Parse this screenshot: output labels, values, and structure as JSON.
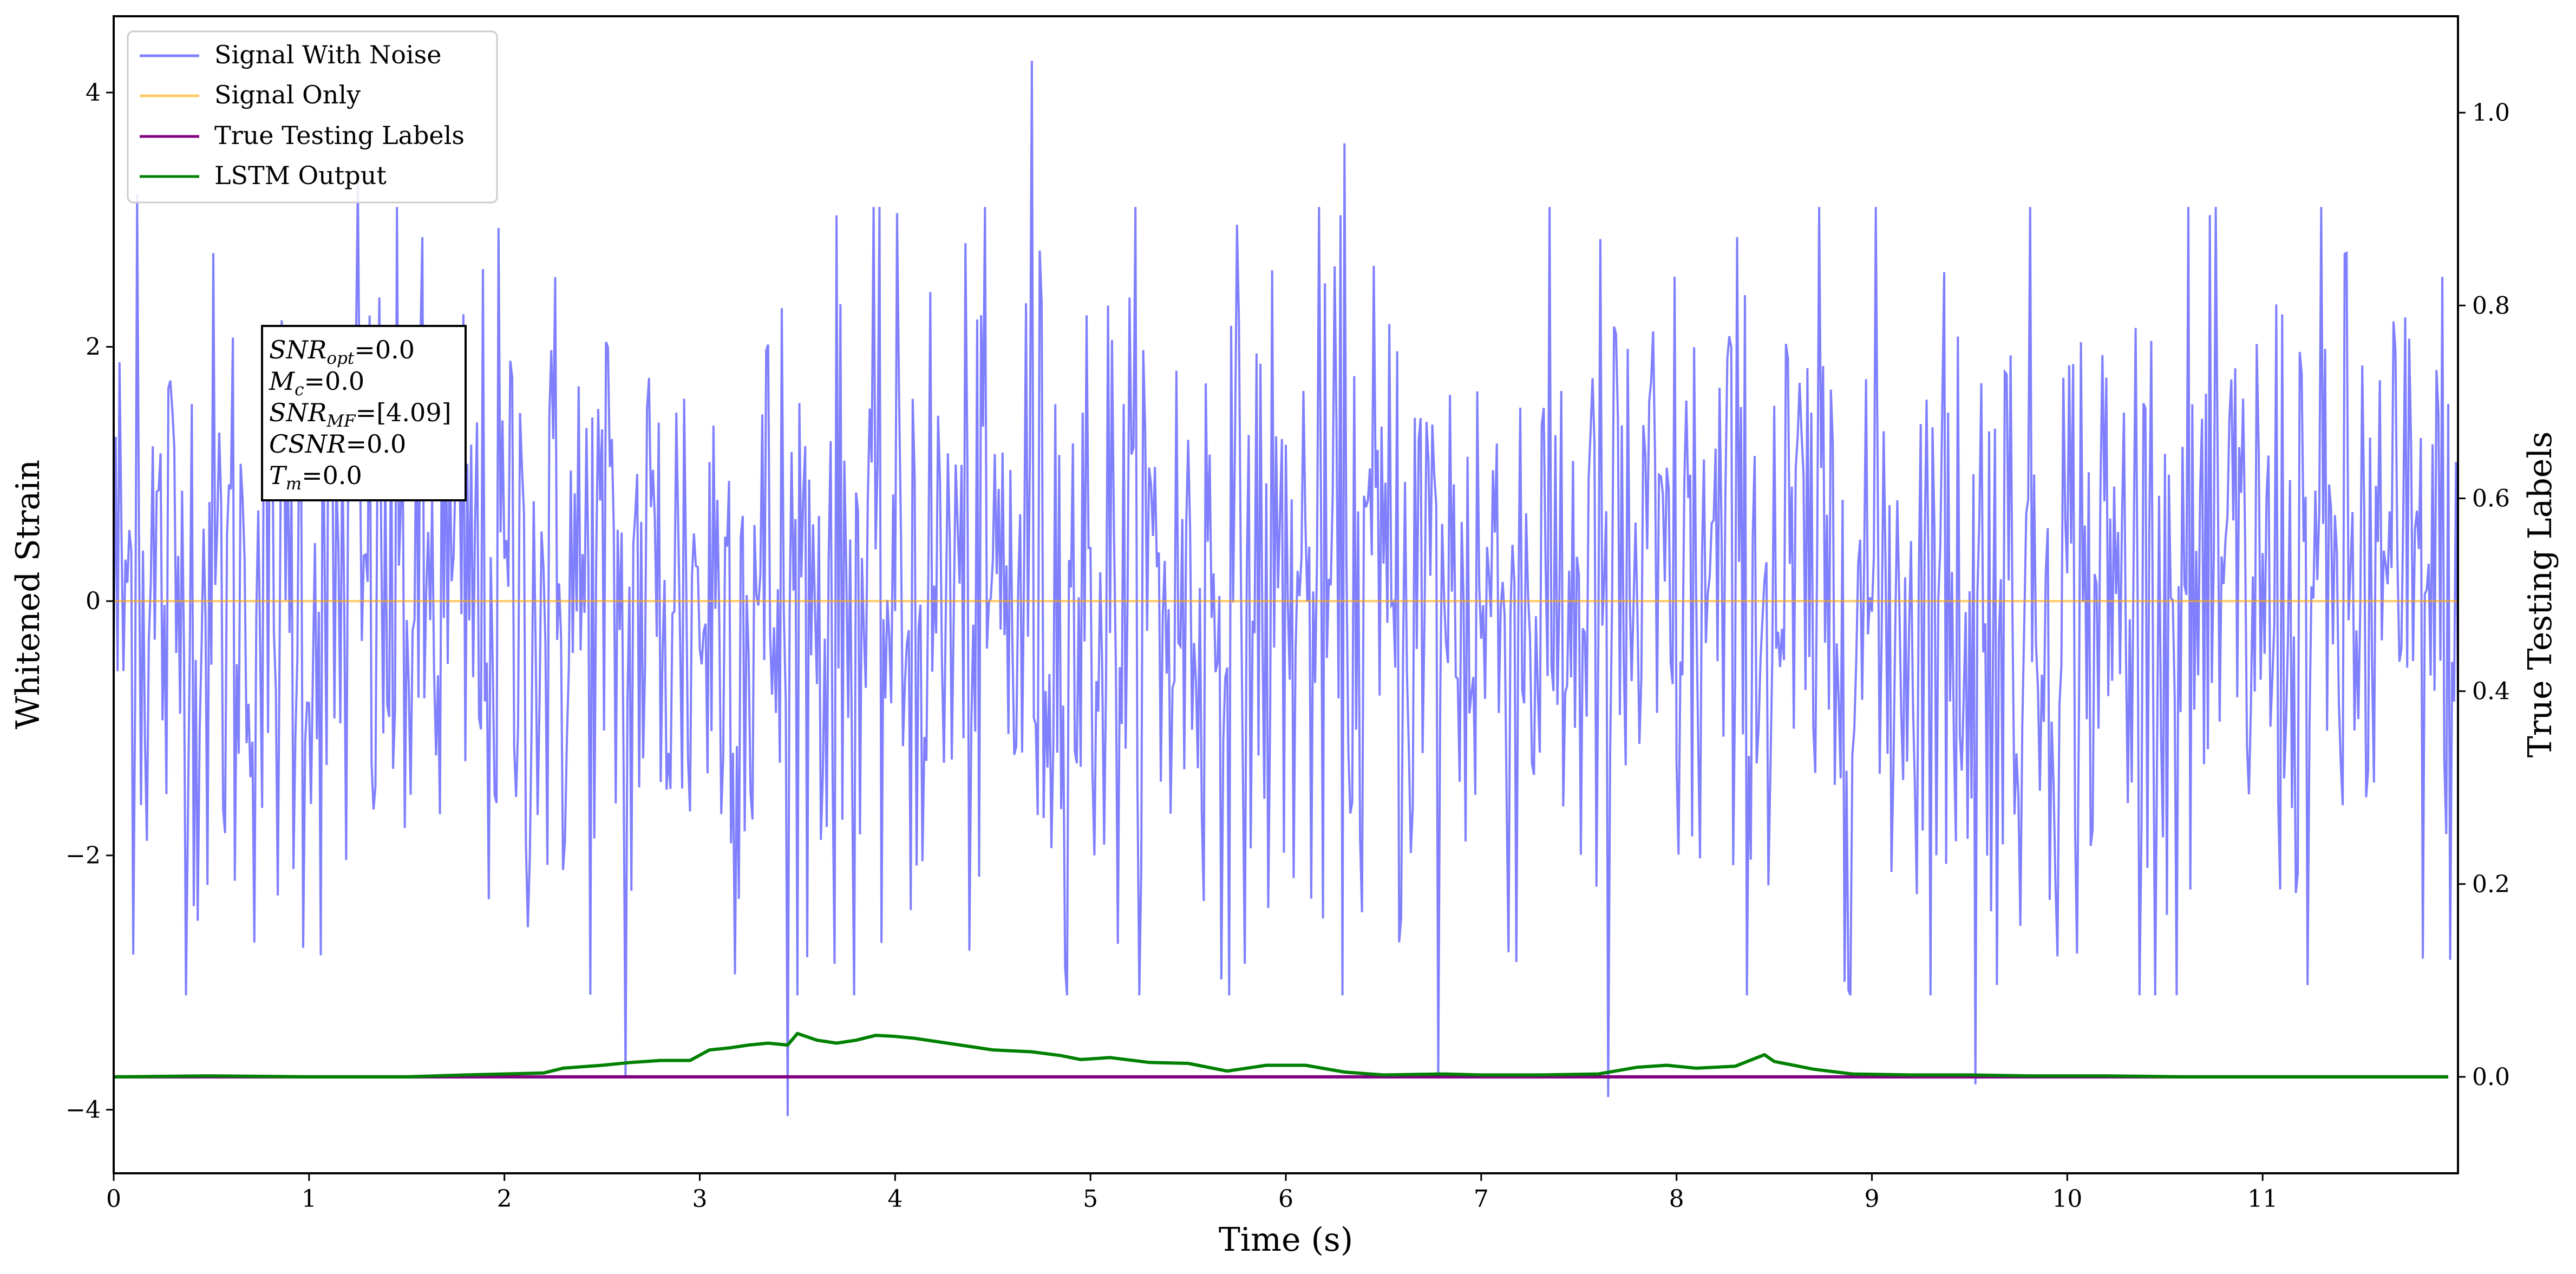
{
  "chart_data": {
    "type": "line",
    "xlabel": "Time (s)",
    "ylabel_left": "Whitened Strain",
    "ylabel_right": "True Testing Labels",
    "xlim": [
      0,
      12
    ],
    "ylim_left": [
      -4.5,
      4.6
    ],
    "ylim_right": [
      -0.1,
      1.1
    ],
    "x_ticks": [
      "0",
      "1",
      "2",
      "3",
      "4",
      "5",
      "6",
      "7",
      "8",
      "9",
      "10",
      "11"
    ],
    "y_left_ticks": [
      "−4",
      "−2",
      "0",
      "2",
      "4"
    ],
    "y_right_ticks": [
      "0.0",
      "0.2",
      "0.4",
      "0.6",
      "0.8",
      "1.0"
    ],
    "grid": false,
    "legend_position": "top-left",
    "series": [
      {
        "name": "Signal With Noise",
        "axis": "left",
        "color": "#8080ff",
        "kind": "noise",
        "sample_count": 1200,
        "typical_range": [
          -1.8,
          1.8
        ],
        "spikes": [
          {
            "x": 0.12,
            "y": 3.2
          },
          {
            "x": 1.25,
            "y": 3.3
          },
          {
            "x": 4.7,
            "y": 4.25
          },
          {
            "x": 6.3,
            "y": 3.6
          },
          {
            "x": 2.62,
            "y": -3.75
          },
          {
            "x": 3.45,
            "y": -4.05
          },
          {
            "x": 6.78,
            "y": -3.75
          },
          {
            "x": 7.65,
            "y": -3.9
          },
          {
            "x": 9.53,
            "y": -3.8
          },
          {
            "x": 10.22,
            "y": 0.65
          }
        ]
      },
      {
        "name": "Signal Only",
        "axis": "left",
        "color": "#ffa500",
        "x": [
          0,
          12
        ],
        "y": [
          0,
          0
        ]
      },
      {
        "name": "True Testing Labels",
        "axis": "right",
        "color": "#800080",
        "x": [
          0,
          11.95
        ],
        "y": [
          0,
          0
        ]
      },
      {
        "name": "LSTM Output",
        "axis": "right",
        "color": "#008000",
        "x": [
          0,
          0.5,
          1.0,
          1.5,
          1.8,
          2.0,
          2.2,
          2.3,
          2.5,
          2.65,
          2.8,
          2.95,
          3.05,
          3.15,
          3.25,
          3.35,
          3.45,
          3.5,
          3.6,
          3.7,
          3.8,
          3.9,
          4.0,
          4.1,
          4.3,
          4.5,
          4.7,
          4.85,
          4.95,
          5.1,
          5.3,
          5.5,
          5.7,
          5.9,
          6.1,
          6.3,
          6.5,
          6.8,
          7.0,
          7.3,
          7.6,
          7.8,
          7.95,
          8.1,
          8.3,
          8.45,
          8.5,
          8.7,
          8.9,
          9.2,
          9.5,
          9.8,
          10.2,
          10.6,
          11.0,
          11.5,
          11.95
        ],
        "y": [
          0.0,
          0.001,
          0.0,
          0.0,
          0.002,
          0.003,
          0.004,
          0.009,
          0.012,
          0.015,
          0.017,
          0.017,
          0.028,
          0.03,
          0.033,
          0.035,
          0.033,
          0.045,
          0.038,
          0.035,
          0.038,
          0.043,
          0.042,
          0.04,
          0.034,
          0.028,
          0.026,
          0.022,
          0.018,
          0.02,
          0.015,
          0.014,
          0.006,
          0.012,
          0.012,
          0.005,
          0.002,
          0.003,
          0.002,
          0.002,
          0.003,
          0.01,
          0.012,
          0.009,
          0.011,
          0.023,
          0.016,
          0.008,
          0.003,
          0.002,
          0.002,
          0.001,
          0.001,
          0.0,
          0.0,
          0.0,
          0.0
        ]
      }
    ],
    "legend": [
      {
        "label": "Signal With Noise",
        "color": "#8080ff"
      },
      {
        "label": "Signal Only",
        "color": "#ffa500"
      },
      {
        "label": "True Testing Labels",
        "color": "#800080"
      },
      {
        "label": "LSTM Output",
        "color": "#008000"
      }
    ],
    "info_box": {
      "snr_opt": {
        "sym": "SNR",
        "sub": "opt",
        "value": "=0.0"
      },
      "mc": {
        "sym": "M",
        "sub": "c",
        "value": "=0.0"
      },
      "snr_mf": {
        "sym": "SNR",
        "sub": "MF",
        "value": "=[4.09]"
      },
      "csnr": {
        "sym": "CSNR",
        "value": "=0.0"
      },
      "tm": {
        "sym": "T",
        "sub": "m",
        "value": "=0.0"
      }
    }
  }
}
